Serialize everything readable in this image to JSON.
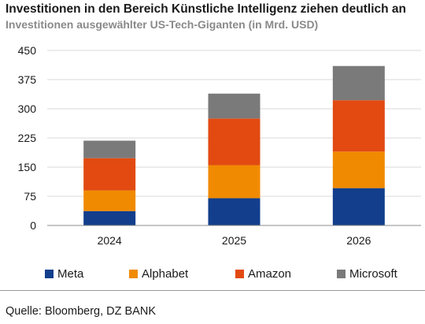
{
  "chart_data": {
    "type": "bar",
    "stacked": true,
    "title": "Investitionen in den Bereich Künstliche Intelligenz ziehen deutlich an",
    "subtitle": "Investitionen ausgewählter US-Tech-Giganten (in Mrd. USD)",
    "categories": [
      "2024",
      "2025",
      "2026"
    ],
    "series": [
      {
        "name": "Meta",
        "color": "#123e8c",
        "values": [
          37,
          70,
          96
        ]
      },
      {
        "name": "Alphabet",
        "color": "#f08a00",
        "values": [
          53,
          85,
          94
        ]
      },
      {
        "name": "Amazon",
        "color": "#e24a12",
        "values": [
          83,
          120,
          132
        ]
      },
      {
        "name": "Microsoft",
        "color": "#7a7a7a",
        "values": [
          45,
          64,
          88
        ]
      }
    ],
    "ylim": [
      0,
      450
    ],
    "yticks": [
      0,
      75,
      150,
      225,
      300,
      375,
      450
    ],
    "grid": true,
    "legend_position": "bottom"
  },
  "source": "Quelle: Bloomberg, DZ BANK"
}
